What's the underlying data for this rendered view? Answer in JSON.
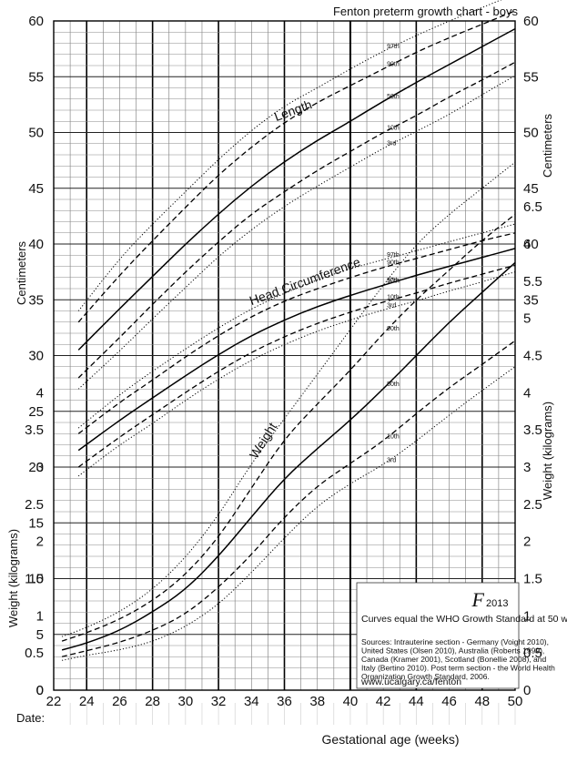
{
  "chart_data": {
    "type": "line",
    "title": "Fenton preterm growth chart - boys",
    "xlabel": "Gestational age (weeks)",
    "x_range": [
      22,
      50
    ],
    "x_ticks": [
      22,
      24,
      26,
      28,
      30,
      32,
      34,
      36,
      38,
      40,
      42,
      44,
      46,
      48,
      50
    ],
    "date_label": "Date:",
    "left_axis": {
      "upper_label": "Centimeters",
      "lower_label": "Weight (kilograms)",
      "cm_ticks": [
        0,
        5,
        10,
        15,
        20,
        25,
        30,
        35,
        40,
        45,
        50,
        55,
        60
      ],
      "kg_ticks": [
        "0",
        "0.5",
        "1",
        "1.5",
        "2",
        "2.5",
        "3",
        "3.5",
        "4"
      ]
    },
    "right_axis": {
      "upper_label": "Centimeters",
      "lower_label": "Weight (kilograms)",
      "cm_ticks": [
        35,
        40,
        45,
        50,
        55,
        60
      ],
      "kg_ticks": [
        "0",
        "0.5",
        "1",
        "1.5",
        "2",
        "2.5",
        "3",
        "3.5",
        "4",
        "4.5",
        "5",
        "5.5",
        "6",
        "6.5"
      ]
    },
    "percentile_labels": [
      "97th",
      "90th",
      "50th",
      "10th",
      "3rd"
    ],
    "groups": [
      {
        "name": "Length",
        "units": "cm",
        "label_at": [
          35.5,
          51
        ],
        "x": [
          23.5,
          26,
          28,
          30,
          32,
          34,
          36,
          38,
          40,
          42,
          44,
          46,
          48,
          50
        ],
        "series": [
          {
            "name": "97th",
            "values": [
              34,
              38.7,
              41.8,
              44.7,
              47.6,
              50.2,
              52.4,
              54,
              55.7,
              57.3,
              58.7,
              60,
              61.2,
              62.4
            ]
          },
          {
            "name": "90th",
            "values": [
              33,
              37.2,
              40.3,
              43.3,
              46.2,
              48.7,
              50.9,
              52.7,
              54.2,
              55.7,
              57.2,
              58.5,
              59.7,
              60.9
            ]
          },
          {
            "name": "50th",
            "values": [
              30.5,
              34.2,
              37.1,
              40,
              42.7,
              45.2,
              47.4,
              49.3,
              51,
              52.8,
              54.5,
              56.1,
              57.7,
              59.3
            ]
          },
          {
            "name": "10th",
            "values": [
              28,
              31.6,
              34.6,
              37.5,
              40.2,
              42.7,
              44.7,
              46.6,
              48.3,
              50,
              51.5,
              53.2,
              54.7,
              56.3
            ]
          },
          {
            "name": "3rd",
            "values": [
              27,
              30.4,
              33.3,
              36.1,
              38.9,
              41.3,
              43.4,
              45.2,
              46.9,
              48.6,
              50.1,
              51.6,
              53.4,
              55.1
            ]
          }
        ]
      },
      {
        "name": "Head Circumference",
        "units": "cm",
        "label_at": [
          34,
          34.5
        ],
        "x": [
          23.5,
          26,
          28,
          30,
          32,
          34,
          36,
          38,
          40,
          42,
          44,
          46,
          48,
          50
        ],
        "series": [
          {
            "name": "97th",
            "values": [
              23.5,
              26.5,
              28.6,
              30.6,
              32.5,
              34.2,
              35.6,
              36.8,
              37.8,
              38.6,
              39.4,
              40.2,
              41,
              41.8
            ]
          },
          {
            "name": "90th",
            "values": [
              23,
              25.8,
              27.8,
              29.9,
              31.8,
              33.5,
              34.9,
              36,
              37,
              37.9,
              38.7,
              39.5,
              40.3,
              41
            ]
          },
          {
            "name": "50th",
            "values": [
              21.5,
              24.2,
              26.2,
              28.2,
              30.1,
              31.8,
              33.2,
              34.4,
              35.4,
              36.3,
              37.2,
              38,
              38.8,
              39.6
            ]
          },
          {
            "name": "10th",
            "values": [
              20,
              22.7,
              24.7,
              26.7,
              28.6,
              30.3,
              31.7,
              32.9,
              33.9,
              34.8,
              35.6,
              36.5,
              37.3,
              38.1
            ]
          },
          {
            "name": "3rd",
            "values": [
              19.2,
              22,
              23.9,
              26,
              27.9,
              29.6,
              31,
              32.2,
              33.2,
              34.1,
              34.9,
              35.8,
              36.6,
              37.5
            ]
          }
        ]
      },
      {
        "name": "Weight",
        "units": "kg",
        "label_at": [
          34.3,
          3.1
        ],
        "x": [
          22.5,
          24,
          26,
          28,
          30,
          32,
          34,
          36,
          38,
          40,
          42,
          44,
          46,
          48,
          50
        ],
        "series": [
          {
            "name": "97th",
            "values": [
              0.72,
              0.84,
              1.05,
              1.35,
              1.78,
              2.35,
              3.05,
              3.65,
              4.25,
              4.85,
              5.45,
              6.0,
              6.4,
              6.75,
              7.1
            ]
          },
          {
            "name": "90th",
            "values": [
              0.66,
              0.77,
              0.95,
              1.2,
              1.55,
              2.05,
              2.72,
              3.38,
              3.85,
              4.3,
              4.8,
              5.25,
              5.65,
              6.05,
              6.4
            ]
          },
          {
            "name": "50th",
            "values": [
              0.54,
              0.63,
              0.8,
              1.05,
              1.35,
              1.8,
              2.33,
              2.85,
              3.25,
              3.63,
              4.05,
              4.5,
              4.95,
              5.35,
              5.75
            ]
          },
          {
            "name": "10th",
            "values": [
              0.45,
              0.53,
              0.64,
              0.8,
              1.02,
              1.38,
              1.82,
              2.33,
              2.75,
              3.05,
              3.35,
              3.72,
              4.07,
              4.38,
              4.7
            ]
          },
          {
            "name": "3rd",
            "values": [
              0.4,
              0.47,
              0.54,
              0.65,
              0.85,
              1.15,
              1.58,
              2.05,
              2.48,
              2.78,
              3.03,
              3.35,
              3.7,
              4.03,
              4.35
            ]
          }
        ]
      }
    ],
    "logo": "F",
    "logo_year": "2013",
    "notes": {
      "who_note": "Curves equal the WHO Growth Standard at 50 weeks.",
      "sources": [
        "Sources: Intrauterine section - Germany (Voight 2010),",
        "United States (Olsen 2010), Australia (Roberts 1999),",
        "Canada (Kramer 2001), Scotland (Bonellie 2008), and",
        "Italy (Bertino 2010). Post term section - the World Health",
        "Organization Growth Standard, 2006."
      ],
      "url": "www.ucalgary.ca/fenton"
    }
  }
}
